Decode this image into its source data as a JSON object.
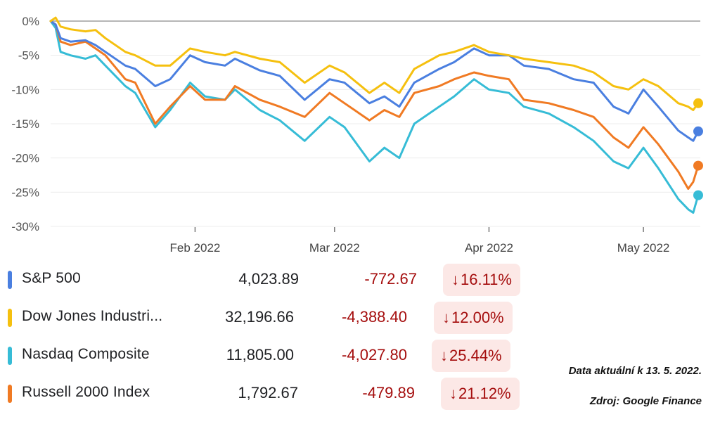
{
  "chart_data": {
    "type": "line",
    "y_ticks": [
      "0%",
      "-5%",
      "-10%",
      "-15%",
      "-20%",
      "-25%",
      "-30%"
    ],
    "y_values": [
      0,
      -5,
      -10,
      -15,
      -20,
      -25,
      -30
    ],
    "ylim": [
      -30,
      0
    ],
    "x_range": [
      "2022-01-03",
      "2022-05-13"
    ],
    "x_ticks": [
      {
        "label": "Feb 2022",
        "date": "2022-02-01"
      },
      {
        "label": "Mar 2022",
        "date": "2022-03-01"
      },
      {
        "label": "Apr 2022",
        "date": "2022-04-01"
      },
      {
        "label": "May 2022",
        "date": "2022-05-02"
      }
    ],
    "grid": "horizontal",
    "series": [
      {
        "name": "S&P 500",
        "color": "#4a7fe0",
        "end_value": -16.11,
        "x": [
          "2022-01-03",
          "2022-01-04",
          "2022-01-05",
          "2022-01-07",
          "2022-01-10",
          "2022-01-12",
          "2022-01-14",
          "2022-01-18",
          "2022-01-20",
          "2022-01-24",
          "2022-01-27",
          "2022-01-31",
          "2022-02-03",
          "2022-02-07",
          "2022-02-09",
          "2022-02-14",
          "2022-02-18",
          "2022-02-23",
          "2022-02-28",
          "2022-03-03",
          "2022-03-08",
          "2022-03-11",
          "2022-03-14",
          "2022-03-17",
          "2022-03-22",
          "2022-03-25",
          "2022-03-29",
          "2022-04-01",
          "2022-04-05",
          "2022-04-08",
          "2022-04-13",
          "2022-04-18",
          "2022-04-22",
          "2022-04-26",
          "2022-04-29",
          "2022-05-02",
          "2022-05-05",
          "2022-05-09",
          "2022-05-11",
          "2022-05-12",
          "2022-05-13"
        ],
        "values": [
          0,
          -0.5,
          -2.5,
          -3,
          -2.8,
          -3.5,
          -4.5,
          -6.5,
          -7,
          -9.5,
          -8.5,
          -5,
          -6,
          -6.5,
          -5.5,
          -7.2,
          -8,
          -11.5,
          -8.5,
          -9,
          -12,
          -11,
          -12.5,
          -9,
          -7,
          -6,
          -4,
          -5,
          -5,
          -6.5,
          -7,
          -8.5,
          -9,
          -12.5,
          -13.5,
          -10,
          -12.5,
          -16,
          -17,
          -17.5,
          -16.11
        ]
      },
      {
        "name": "Dow Jones Industrial Average",
        "color": "#f5c00f",
        "end_value": -12.0,
        "x": [
          "2022-01-03",
          "2022-01-04",
          "2022-01-05",
          "2022-01-07",
          "2022-01-10",
          "2022-01-12",
          "2022-01-14",
          "2022-01-18",
          "2022-01-20",
          "2022-01-24",
          "2022-01-27",
          "2022-01-31",
          "2022-02-03",
          "2022-02-07",
          "2022-02-09",
          "2022-02-14",
          "2022-02-18",
          "2022-02-23",
          "2022-02-28",
          "2022-03-03",
          "2022-03-08",
          "2022-03-11",
          "2022-03-14",
          "2022-03-17",
          "2022-03-22",
          "2022-03-25",
          "2022-03-29",
          "2022-04-01",
          "2022-04-05",
          "2022-04-08",
          "2022-04-13",
          "2022-04-18",
          "2022-04-22",
          "2022-04-26",
          "2022-04-29",
          "2022-05-02",
          "2022-05-05",
          "2022-05-09",
          "2022-05-11",
          "2022-05-12",
          "2022-05-13"
        ],
        "values": [
          0,
          0.5,
          -0.8,
          -1.2,
          -1.5,
          -1.3,
          -2.5,
          -4.5,
          -5,
          -6.5,
          -6.5,
          -4,
          -4.5,
          -5,
          -4.5,
          -5.5,
          -6,
          -9,
          -6.5,
          -7.5,
          -10.5,
          -9,
          -10.5,
          -7,
          -5,
          -4.5,
          -3.5,
          -4.5,
          -5,
          -5.5,
          -6,
          -6.5,
          -7.5,
          -9.5,
          -10,
          -8.5,
          -9.5,
          -12,
          -12.5,
          -13,
          -12.0
        ]
      },
      {
        "name": "Nasdaq Composite",
        "color": "#36bcd6",
        "end_value": -25.44,
        "x": [
          "2022-01-03",
          "2022-01-04",
          "2022-01-05",
          "2022-01-07",
          "2022-01-10",
          "2022-01-12",
          "2022-01-14",
          "2022-01-18",
          "2022-01-20",
          "2022-01-24",
          "2022-01-27",
          "2022-01-31",
          "2022-02-03",
          "2022-02-07",
          "2022-02-09",
          "2022-02-14",
          "2022-02-18",
          "2022-02-23",
          "2022-02-28",
          "2022-03-03",
          "2022-03-08",
          "2022-03-11",
          "2022-03-14",
          "2022-03-17",
          "2022-03-22",
          "2022-03-25",
          "2022-03-29",
          "2022-04-01",
          "2022-04-05",
          "2022-04-08",
          "2022-04-13",
          "2022-04-18",
          "2022-04-22",
          "2022-04-26",
          "2022-04-29",
          "2022-05-02",
          "2022-05-05",
          "2022-05-09",
          "2022-05-11",
          "2022-05-12",
          "2022-05-13"
        ],
        "values": [
          0,
          -1,
          -4.5,
          -5,
          -5.5,
          -5,
          -6.5,
          -9.5,
          -10.5,
          -15.5,
          -13,
          -9,
          -11,
          -11.5,
          -10,
          -13,
          -14.5,
          -17.5,
          -14,
          -15.5,
          -20.5,
          -18.5,
          -20,
          -15,
          -12.5,
          -11,
          -8.5,
          -10,
          -10.5,
          -12.5,
          -13.5,
          -15.5,
          -17.5,
          -20.5,
          -21.5,
          -18.5,
          -21.5,
          -26,
          -27.5,
          -28,
          -25.44
        ]
      },
      {
        "name": "Russell 2000 Index",
        "color": "#f07a23",
        "end_value": -21.12,
        "x": [
          "2022-01-03",
          "2022-01-04",
          "2022-01-05",
          "2022-01-07",
          "2022-01-10",
          "2022-01-12",
          "2022-01-14",
          "2022-01-18",
          "2022-01-20",
          "2022-01-24",
          "2022-01-27",
          "2022-01-31",
          "2022-02-03",
          "2022-02-07",
          "2022-02-09",
          "2022-02-14",
          "2022-02-18",
          "2022-02-23",
          "2022-02-28",
          "2022-03-03",
          "2022-03-08",
          "2022-03-11",
          "2022-03-14",
          "2022-03-17",
          "2022-03-22",
          "2022-03-25",
          "2022-03-29",
          "2022-04-01",
          "2022-04-05",
          "2022-04-08",
          "2022-04-13",
          "2022-04-18",
          "2022-04-22",
          "2022-04-26",
          "2022-04-29",
          "2022-05-02",
          "2022-05-05",
          "2022-05-09",
          "2022-05-11",
          "2022-05-12",
          "2022-05-13"
        ],
        "values": [
          0,
          -0.5,
          -3,
          -3.5,
          -3,
          -4,
          -5,
          -8.5,
          -9,
          -15,
          -12.5,
          -9.5,
          -11.5,
          -11.5,
          -9.5,
          -11.5,
          -12.5,
          -14,
          -10.5,
          -12,
          -14.5,
          -13,
          -14,
          -10.5,
          -9.5,
          -8.5,
          -7.5,
          -8,
          -8.5,
          -11.5,
          -12,
          -13,
          -14,
          -17,
          -18.5,
          -15.5,
          -18,
          -22,
          -24.5,
          -23.5,
          -21.12
        ]
      }
    ]
  },
  "legend": [
    {
      "name": "S&P 500",
      "price": "4,023.89",
      "change": "-772.67",
      "arrow": "↓",
      "pct": "16.11%"
    },
    {
      "name": "Dow Jones Industri...",
      "price": "32,196.66",
      "change": "-4,388.40",
      "arrow": "↓",
      "pct": "12.00%"
    },
    {
      "name": "Nasdaq Composite",
      "price": "11,805.00",
      "change": "-4,027.80",
      "arrow": "↓",
      "pct": "25.44%"
    },
    {
      "name": "Russell 2000 Index",
      "price": "1,792.67",
      "change": "-479.89",
      "arrow": "↓",
      "pct": "21.12%"
    }
  ],
  "notes": {
    "date": "Data aktuální k 13. 5. 2022.",
    "source": "Zdroj: Google Finance"
  }
}
